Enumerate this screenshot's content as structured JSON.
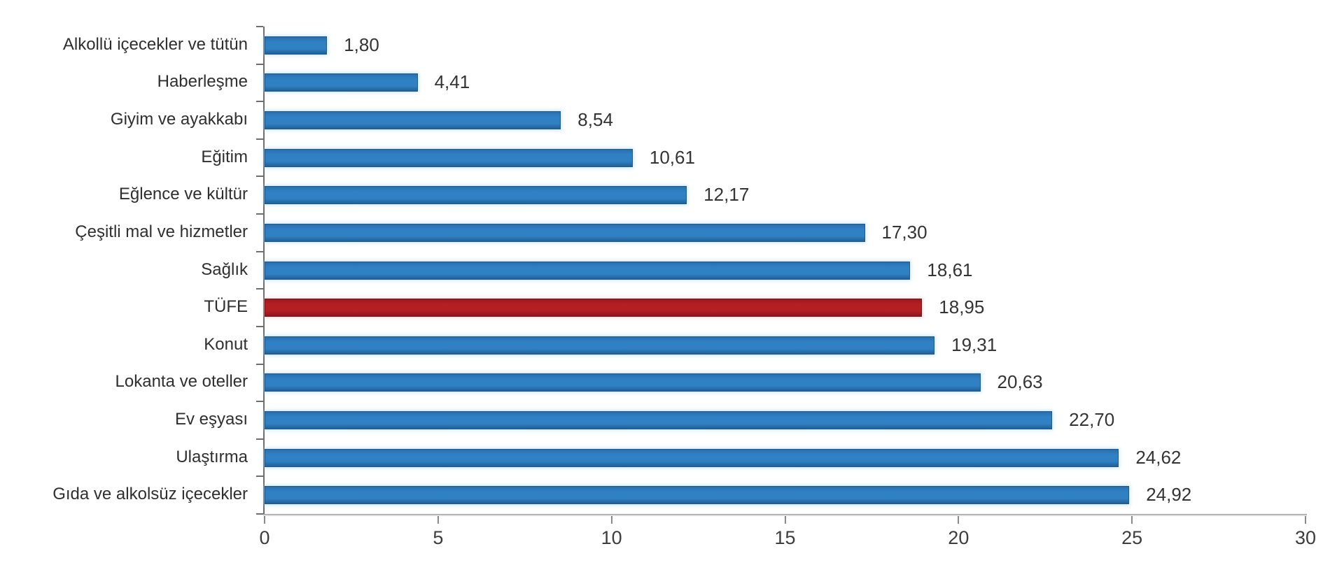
{
  "chart_data": {
    "type": "bar",
    "orientation": "horizontal",
    "title": "",
    "categories": [
      "Alkollü içecekler ve tütün",
      "Haberleşme",
      "Giyim ve ayakkabı",
      "Eğitim",
      "Eğlence ve kültür",
      "Çeşitli mal ve hizmetler",
      "Sağlık",
      "TÜFE",
      "Konut",
      "Lokanta ve oteller",
      "Ev eşyası",
      "Ulaştırma",
      "Gıda ve alkolsüz içecekler"
    ],
    "values": [
      1.8,
      4.41,
      8.54,
      10.61,
      12.17,
      17.3,
      18.61,
      18.95,
      19.31,
      20.63,
      22.7,
      24.62,
      24.92
    ],
    "value_labels": [
      "1,80",
      "4,41",
      "8,54",
      "10,61",
      "12,17",
      "17,30",
      "18,61",
      "18,95",
      "19,31",
      "20,63",
      "22,70",
      "24,62",
      "24,92"
    ],
    "highlight_category": "TÜFE",
    "highlight_index": 7,
    "xlabel": "",
    "ylabel": "",
    "xlim": [
      0,
      30
    ],
    "x_ticks": [
      0,
      5,
      10,
      15,
      20,
      25,
      30
    ],
    "x_tick_labels": [
      "0",
      "5",
      "10",
      "15",
      "20",
      "25",
      "30"
    ],
    "grid": false,
    "legend_position": "none",
    "colors": {
      "bar": "#2f81c4",
      "bar_border": "#1c5a8f",
      "highlight_bar": "#b51f24",
      "highlight_bar_border": "#7d1317",
      "axis_line": "#9a9a9a",
      "y_axis_line": "#6e6e6e",
      "text": "#2f2f2f"
    }
  }
}
